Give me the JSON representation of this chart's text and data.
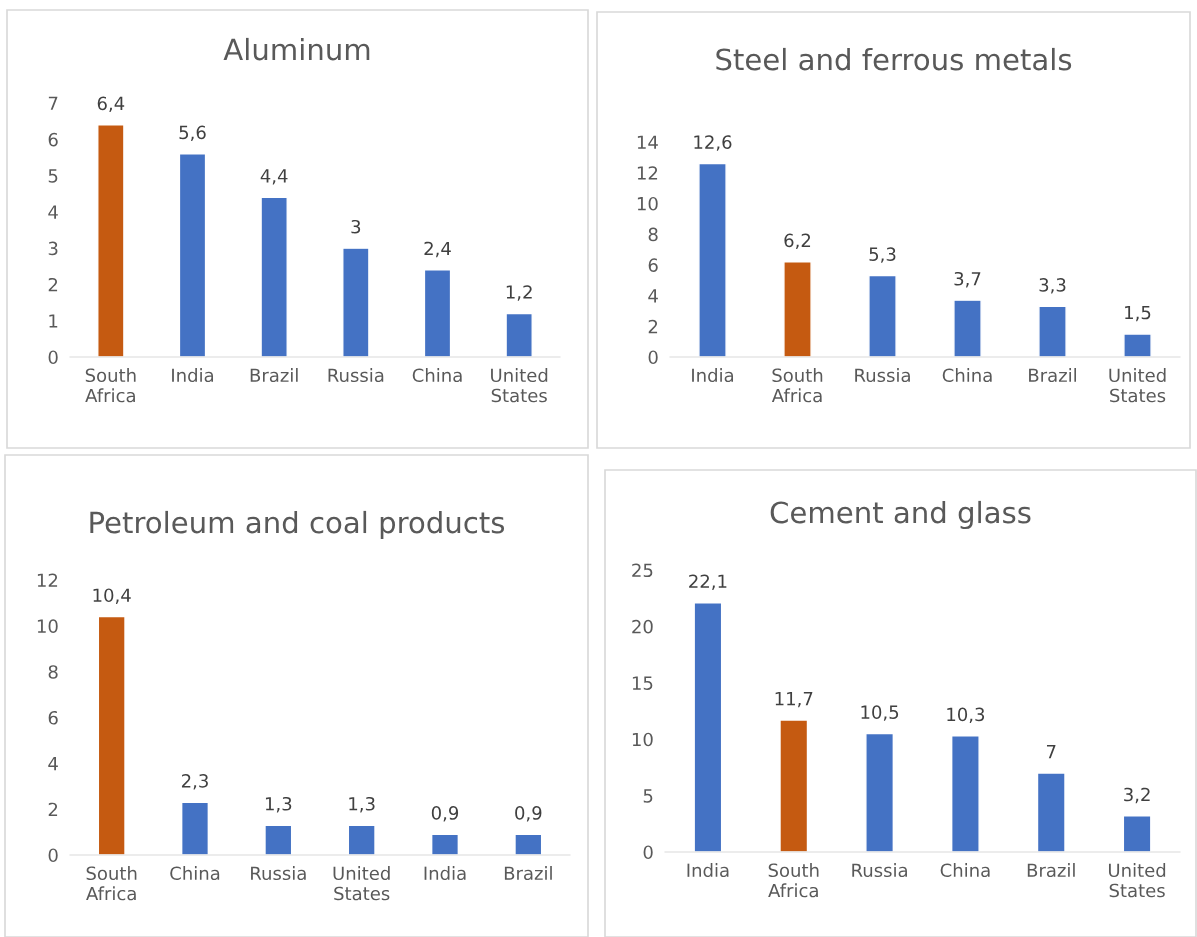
{
  "chart_data": [
    {
      "type": "bar",
      "title": "Aluminum",
      "categories": [
        "South Africa",
        "India",
        "Brazil",
        "Russia",
        "China",
        "United States"
      ],
      "values": [
        6.4,
        5.6,
        4.4,
        3,
        2.4,
        1.2
      ],
      "colors": [
        "#c55a11",
        "#4472c4",
        "#4472c4",
        "#4472c4",
        "#4472c4",
        "#4472c4"
      ],
      "value_labels": [
        "6,4",
        "5,6",
        "4,4",
        "3",
        "2,4",
        "1,2"
      ],
      "ylim": [
        0,
        7
      ],
      "yticks": [
        0,
        1,
        2,
        3,
        4,
        5,
        6,
        7
      ]
    },
    {
      "type": "bar",
      "title": "Steel and ferrous metals",
      "categories": [
        "India",
        "South Africa",
        "Russia",
        "China",
        "Brazil",
        "United States"
      ],
      "values": [
        12.6,
        6.2,
        5.3,
        3.7,
        3.3,
        1.5
      ],
      "colors": [
        "#4472c4",
        "#c55a11",
        "#4472c4",
        "#4472c4",
        "#4472c4",
        "#4472c4"
      ],
      "value_labels": [
        "12,6",
        "6,2",
        "5,3",
        "3,7",
        "3,3",
        "1,5"
      ],
      "ylim": [
        0,
        14
      ],
      "yticks": [
        0,
        2,
        4,
        6,
        8,
        10,
        12,
        14
      ]
    },
    {
      "type": "bar",
      "title": "Petroleum and coal products",
      "categories": [
        "South Africa",
        "China",
        "Russia",
        "United States",
        "India",
        "Brazil"
      ],
      "values": [
        10.4,
        2.3,
        1.3,
        1.3,
        0.9,
        0.9
      ],
      "colors": [
        "#c55a11",
        "#4472c4",
        "#4472c4",
        "#4472c4",
        "#4472c4",
        "#4472c4"
      ],
      "value_labels": [
        "10,4",
        "2,3",
        "1,3",
        "1,3",
        "0,9",
        "0,9"
      ],
      "ylim": [
        0,
        12
      ],
      "yticks": [
        0,
        2,
        4,
        6,
        8,
        10,
        12
      ]
    },
    {
      "type": "bar",
      "title": "Cement and glass",
      "categories": [
        "India",
        "South Africa",
        "Russia",
        "China",
        "Brazil",
        "United States"
      ],
      "values": [
        22.1,
        11.7,
        10.5,
        10.3,
        7,
        3.2
      ],
      "colors": [
        "#4472c4",
        "#c55a11",
        "#4472c4",
        "#4472c4",
        "#4472c4",
        "#4472c4"
      ],
      "value_labels": [
        "22,1",
        "11,7",
        "10,5",
        "10,3",
        "7",
        "3,2"
      ],
      "ylim": [
        0,
        25
      ],
      "yticks": [
        0,
        5,
        10,
        15,
        20,
        25
      ]
    }
  ]
}
